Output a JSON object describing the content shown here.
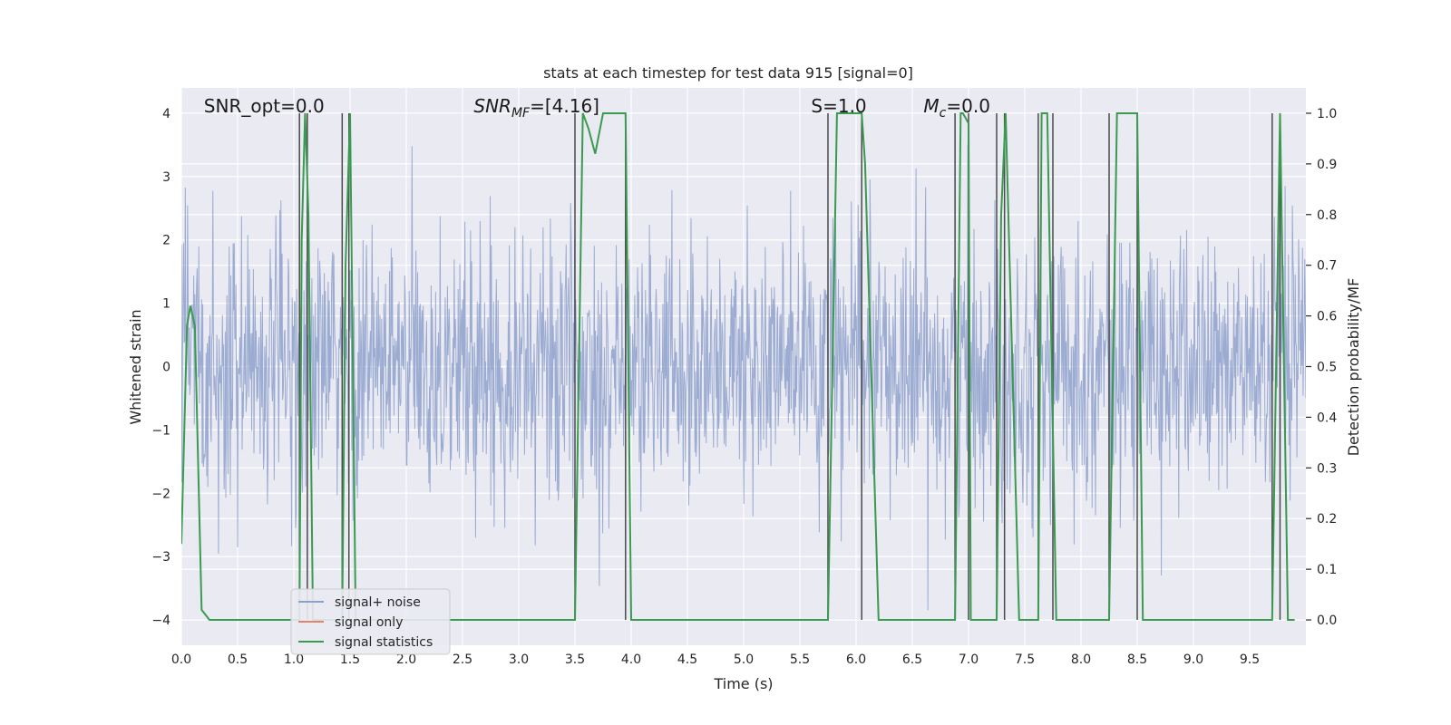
{
  "chart_data": {
    "type": "line",
    "title": "stats at each timestep for test data 915 [signal=0]",
    "xlabel": "Time (s)",
    "ylabel": "Whitened strain",
    "ylabel_right": "Detection probability/MF",
    "xlim": [
      0,
      10
    ],
    "ylim": [
      -4.4,
      4.4
    ],
    "ylim_right": [
      -0.05,
      1.05
    ],
    "x_ticks": [
      0.0,
      0.5,
      1.0,
      1.5,
      2.0,
      2.5,
      3.0,
      3.5,
      4.0,
      4.5,
      5.0,
      5.5,
      6.0,
      6.5,
      7.0,
      7.5,
      8.0,
      8.5,
      9.0,
      9.5
    ],
    "x_tick_labels": [
      "0.0",
      "0.5",
      "1.0",
      "1.5",
      "2.0",
      "2.5",
      "3.0",
      "3.5",
      "4.0",
      "4.5",
      "5.0",
      "5.5",
      "6.0",
      "6.5",
      "7.0",
      "7.5",
      "8.0",
      "8.5",
      "9.0",
      "9.5"
    ],
    "y_ticks": [
      -4,
      -3,
      -2,
      -1,
      0,
      1,
      2,
      3,
      4
    ],
    "y_tick_labels": [
      "−4",
      "−3",
      "−2",
      "−1",
      "0",
      "1",
      "2",
      "3",
      "4"
    ],
    "y_ticks_right": [
      0.0,
      0.1,
      0.2,
      0.3,
      0.4,
      0.5,
      0.6,
      0.7,
      0.8,
      0.9,
      1.0
    ],
    "y_tick_labels_right": [
      "0.0",
      "0.1",
      "0.2",
      "0.3",
      "0.4",
      "0.5",
      "0.6",
      "0.7",
      "0.8",
      "0.9",
      "1.0"
    ],
    "grid": true,
    "legend_position": "lower-left",
    "legend": [
      "signal+ noise",
      "signal only",
      "signal statistics"
    ],
    "colors": {
      "noise": "#8da0cb",
      "signal_only": "#e5836a",
      "statistics": "#3a9a50",
      "vlines": "#4a4a4a",
      "background": "#eaeaf2",
      "grid": "#ffffff"
    },
    "annotations": [
      {
        "key": "snr_opt",
        "text": "SNR_opt=0.0",
        "x": 0.2
      },
      {
        "key": "snr_mf_pre",
        "text": "SNR",
        "sub": "MF",
        "post": "=[4.16]",
        "x": 2.6
      },
      {
        "key": "s",
        "text": "S",
        "post": "=1.0",
        "x": 5.6
      },
      {
        "key": "mc",
        "text": "M",
        "sub": "c",
        "post": "=0.0",
        "x": 6.6
      }
    ],
    "noise": {
      "n_points": 2000,
      "amplitude_envelope": 3.5
    },
    "statistics_series": {
      "x": [
        0.0,
        0.05,
        0.08,
        0.12,
        0.18,
        0.25,
        1.05,
        1.07,
        1.1,
        1.13,
        1.17,
        1.43,
        1.46,
        1.5,
        1.55,
        3.5,
        3.57,
        3.62,
        3.68,
        3.75,
        3.9,
        3.95,
        4.0,
        5.75,
        5.83,
        6.05,
        6.08,
        6.2,
        6.88,
        6.93,
        6.95,
        7.0,
        7.02,
        7.25,
        7.29,
        7.33,
        7.45,
        7.62,
        7.65,
        7.7,
        7.78,
        7.88,
        8.25,
        8.32,
        8.5,
        8.55,
        9.7,
        9.77,
        9.84,
        9.9
      ],
      "y": [
        0.15,
        0.58,
        0.62,
        0.58,
        0.02,
        0.0,
        0.0,
        0.75,
        1.0,
        0.8,
        0.0,
        0.0,
        0.7,
        1.0,
        0.0,
        0.0,
        1.0,
        0.97,
        0.92,
        1.0,
        1.0,
        1.0,
        0.0,
        0.0,
        1.0,
        1.0,
        0.9,
        0.0,
        0.0,
        1.0,
        1.0,
        0.98,
        0.0,
        0.0,
        0.8,
        1.0,
        0.0,
        0.0,
        1.0,
        1.0,
        0.0,
        0.0,
        0.0,
        1.0,
        1.0,
        0.0,
        0.0,
        1.0,
        0.0,
        0.0
      ]
    },
    "vlines_x": [
      1.05,
      1.12,
      1.43,
      1.49,
      3.5,
      3.95,
      5.75,
      6.05,
      6.88,
      7.0,
      7.25,
      7.32,
      7.62,
      7.75,
      8.25,
      8.5,
      9.7,
      9.77
    ]
  }
}
